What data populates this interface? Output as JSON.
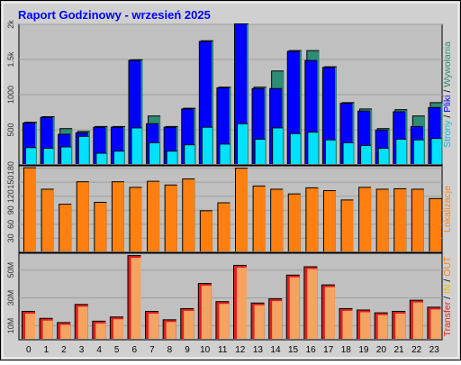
{
  "title": "Raport Godzinowy -  wrzesień 2025",
  "colors": {
    "background": "#d0d0d0",
    "plot_bg": "#c0c0c0",
    "title": "#0000ff",
    "pages": "#0000ff",
    "files": "#2e8b75",
    "hits": "#00e0ff",
    "locations": "#ff8010",
    "transfer_in": "#ffc040",
    "transfer_out": "#e02020"
  },
  "legends": {
    "top": [
      {
        "text": "Strony",
        "color": "#00c0e0"
      },
      {
        "text": " / ",
        "color": "#000000"
      },
      {
        "text": "Pliki",
        "color": "#0000ff"
      },
      {
        "text": " / ",
        "color": "#000000"
      },
      {
        "text": "Wywołania",
        "color": "#2e8b75"
      }
    ],
    "middle": [
      {
        "text": "Lokalizacje",
        "color": "#ff8010"
      }
    ],
    "bottom": [
      {
        "text": "Transfer",
        "color": "#e02020"
      },
      {
        "text": " / ",
        "color": "#000000"
      },
      {
        "text": "IN",
        "color": "#e0c000"
      },
      {
        "text": " / ",
        "color": "#000000"
      },
      {
        "text": "OUT",
        "color": "#ff8010"
      }
    ]
  },
  "chart_data": [
    {
      "type": "bar",
      "categories": [
        "0",
        "1",
        "2",
        "3",
        "4",
        "5",
        "6",
        "7",
        "8",
        "9",
        "10",
        "11",
        "12",
        "13",
        "14",
        "15",
        "16",
        "17",
        "18",
        "19",
        "20",
        "21",
        "22",
        "23"
      ],
      "ylim": [
        0,
        2000
      ],
      "yticks": [
        500,
        1000,
        1500,
        2000
      ],
      "ytick_labels": [
        "500",
        "1000",
        "1.5k",
        "2k"
      ],
      "series": [
        {
          "name": "Wywołania",
          "values": [
            600,
            680,
            510,
            470,
            540,
            540,
            1490,
            690,
            540,
            800,
            1760,
            1100,
            2000,
            1100,
            1330,
            1620,
            1620,
            1390,
            880,
            790,
            510,
            780,
            690,
            880
          ]
        },
        {
          "name": "Pliki",
          "values": [
            590,
            670,
            430,
            450,
            530,
            530,
            1480,
            580,
            530,
            790,
            1750,
            1090,
            2000,
            1080,
            1080,
            1610,
            1480,
            1380,
            870,
            760,
            490,
            750,
            540,
            810
          ]
        },
        {
          "name": "Strony",
          "values": [
            240,
            230,
            250,
            400,
            160,
            190,
            520,
            310,
            190,
            280,
            530,
            290,
            580,
            360,
            520,
            440,
            460,
            350,
            310,
            270,
            230,
            360,
            350,
            370
          ]
        }
      ]
    },
    {
      "type": "bar",
      "categories": [
        "0",
        "1",
        "2",
        "3",
        "4",
        "5",
        "6",
        "7",
        "8",
        "9",
        "10",
        "11",
        "12",
        "13",
        "14",
        "15",
        "16",
        "17",
        "18",
        "19",
        "20",
        "21",
        "22",
        "23"
      ],
      "ylim": [
        0,
        185
      ],
      "yticks": [
        30,
        60,
        90,
        120,
        150,
        180
      ],
      "ytick_labels": [
        "30",
        "60",
        "90",
        "120",
        "150",
        "180"
      ],
      "series": [
        {
          "name": "Lokalizacje",
          "values": [
            180,
            134,
            102,
            150,
            106,
            150,
            138,
            151,
            143,
            156,
            88,
            105,
            179,
            141,
            134,
            124,
            137,
            131,
            111,
            138,
            134,
            135,
            134,
            114
          ]
        }
      ]
    },
    {
      "type": "bar",
      "categories": [
        "0",
        "1",
        "2",
        "3",
        "4",
        "5",
        "6",
        "7",
        "8",
        "9",
        "10",
        "11",
        "12",
        "13",
        "14",
        "15",
        "16",
        "17",
        "18",
        "19",
        "20",
        "21",
        "22",
        "23"
      ],
      "ylim": [
        0,
        62
      ],
      "yticks": [
        10,
        30,
        50
      ],
      "ytick_labels": [
        "10M",
        "30M",
        "50M"
      ],
      "series": [
        {
          "name": "IN",
          "values": [
            20,
            15,
            12,
            25,
            13,
            16,
            60,
            20,
            14,
            22,
            40,
            27,
            53,
            26,
            29,
            46,
            52,
            39,
            22,
            21,
            19,
            20,
            28,
            23
          ]
        },
        {
          "name": "OUT",
          "values": [
            20,
            15,
            12,
            25,
            13,
            16,
            60,
            20,
            14,
            22,
            40,
            27,
            53,
            26,
            29,
            46,
            52,
            39,
            22,
            21,
            19,
            20,
            28,
            23
          ]
        }
      ]
    }
  ]
}
